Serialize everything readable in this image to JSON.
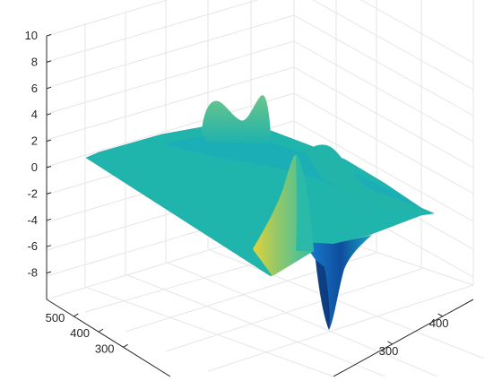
{
  "chart_data": {
    "type": "surface",
    "title": "",
    "xlabel": "",
    "ylabel": "",
    "zlabel": "",
    "zlim": [
      -10,
      10
    ],
    "z_ticks": [
      "10",
      "8",
      "6",
      "4",
      "2",
      "0",
      "-2",
      "-4",
      "-6",
      "-8"
    ],
    "y_ticks": [
      "500",
      "400",
      "300"
    ],
    "x_ticks": [
      "300",
      "400"
    ],
    "grid": true,
    "colormap": "parula",
    "surface": {
      "baseline_z": 0,
      "features": [
        {
          "kind": "peak",
          "z": 6.2,
          "note": "tall narrow ridge near front center"
        },
        {
          "kind": "trough",
          "z": -10,
          "note": "deep narrow trough at front corner"
        },
        {
          "kind": "bump",
          "z": 3.5,
          "note": "pair of bumps near back edge"
        }
      ]
    }
  },
  "colors": {
    "surface_base": "#1fb5ad",
    "surface_light": "#3cc3a1",
    "surface_dark": "#168cc9",
    "surface_deep": "#0d3a7a",
    "peak": "#d6cf3a",
    "grid": "#e6e6e6",
    "axis": "#262626"
  }
}
